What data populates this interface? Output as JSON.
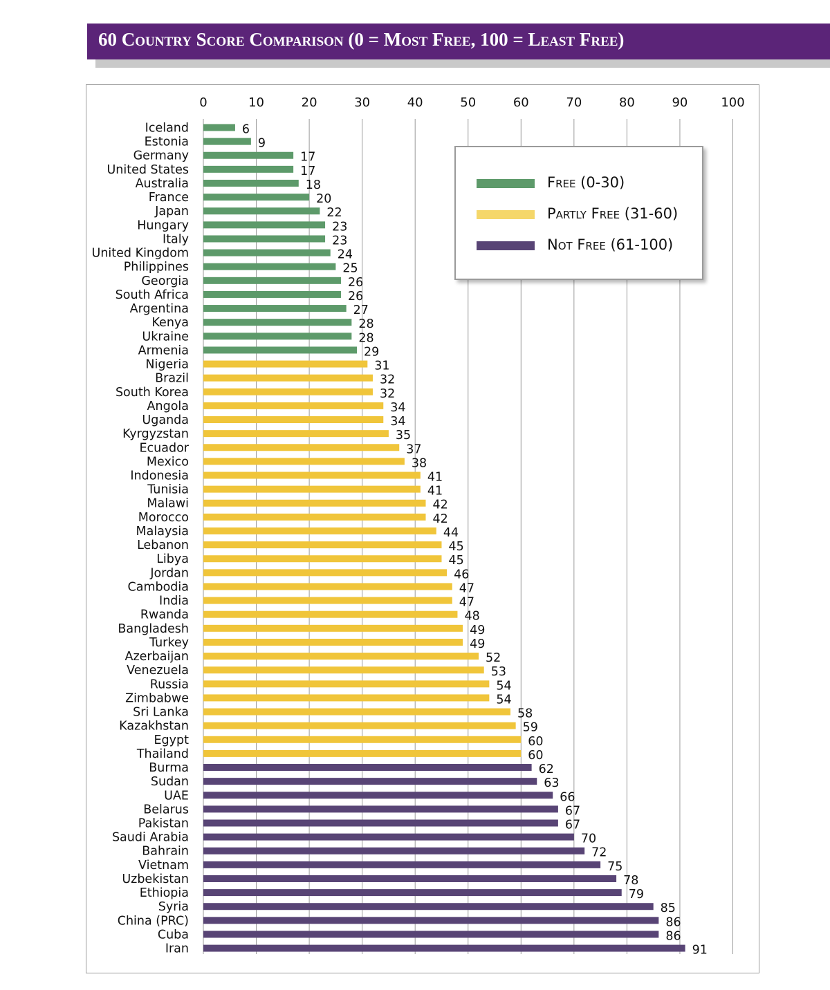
{
  "title": "60 Country Score Comparison (0 = Most Free, 100 = Least Free)",
  "legend": [
    {
      "label": "Free (0-30)",
      "color": "#5d9a6a"
    },
    {
      "label": "Partly Free (31-60)",
      "color": "#f0c53a"
    },
    {
      "label": "Not Free (61-100)",
      "color": "#584475"
    }
  ],
  "colors": {
    "free": "#5d9a6a",
    "partly_free": "#f0c53a",
    "not_free": "#584475",
    "title_bg": "#5b2478"
  },
  "chart_data": {
    "type": "bar",
    "orientation": "horizontal",
    "title": "60 Country Score Comparison (0 = Most Free, 100 = Least Free)",
    "xlim": [
      0,
      100
    ],
    "xticks": [
      0,
      10,
      20,
      30,
      40,
      50,
      60,
      70,
      80,
      90,
      100
    ],
    "grid": true,
    "legend_position": "top-right",
    "categories": [
      "Iceland",
      "Estonia",
      "Germany",
      "United States",
      "Australia",
      "France",
      "Japan",
      "Hungary",
      "Italy",
      "United Kingdom",
      "Philippines",
      "Georgia",
      "South Africa",
      "Argentina",
      "Kenya",
      "Ukraine",
      "Armenia",
      "Nigeria",
      "Brazil",
      "South Korea",
      "Angola",
      "Uganda",
      "Kyrgyzstan",
      "Ecuador",
      "Mexico",
      "Indonesia",
      "Tunisia",
      "Malawi",
      "Morocco",
      "Malaysia",
      "Lebanon",
      "Libya",
      "Jordan",
      "Cambodia",
      "India",
      "Rwanda",
      "Bangladesh",
      "Turkey",
      "Azerbaijan",
      "Venezuela",
      "Russia",
      "Zimbabwe",
      "Sri Lanka",
      "Kazakhstan",
      "Egypt",
      "Thailand",
      "Burma",
      "Sudan",
      "UAE",
      "Belarus",
      "Pakistan",
      "Saudi Arabia",
      "Bahrain",
      "Vietnam",
      "Uzbekistan",
      "Ethiopia",
      "Syria",
      "China (PRC)",
      "Cuba",
      "Iran"
    ],
    "values": [
      6,
      9,
      17,
      17,
      18,
      20,
      22,
      23,
      23,
      24,
      25,
      26,
      26,
      27,
      28,
      28,
      29,
      31,
      32,
      32,
      34,
      34,
      35,
      37,
      38,
      41,
      41,
      42,
      42,
      44,
      45,
      45,
      46,
      47,
      47,
      48,
      49,
      49,
      52,
      53,
      54,
      54,
      58,
      59,
      60,
      60,
      62,
      63,
      66,
      67,
      67,
      70,
      72,
      75,
      78,
      79,
      85,
      86,
      86,
      91
    ],
    "status": [
      "free",
      "free",
      "free",
      "free",
      "free",
      "free",
      "free",
      "free",
      "free",
      "free",
      "free",
      "free",
      "free",
      "free",
      "free",
      "free",
      "free",
      "partly_free",
      "partly_free",
      "partly_free",
      "partly_free",
      "partly_free",
      "partly_free",
      "partly_free",
      "partly_free",
      "partly_free",
      "partly_free",
      "partly_free",
      "partly_free",
      "partly_free",
      "partly_free",
      "partly_free",
      "partly_free",
      "partly_free",
      "partly_free",
      "partly_free",
      "partly_free",
      "partly_free",
      "partly_free",
      "partly_free",
      "partly_free",
      "partly_free",
      "partly_free",
      "partly_free",
      "partly_free",
      "partly_free",
      "not_free",
      "not_free",
      "not_free",
      "not_free",
      "not_free",
      "not_free",
      "not_free",
      "not_free",
      "not_free",
      "not_free",
      "not_free",
      "not_free",
      "not_free",
      "not_free"
    ]
  }
}
